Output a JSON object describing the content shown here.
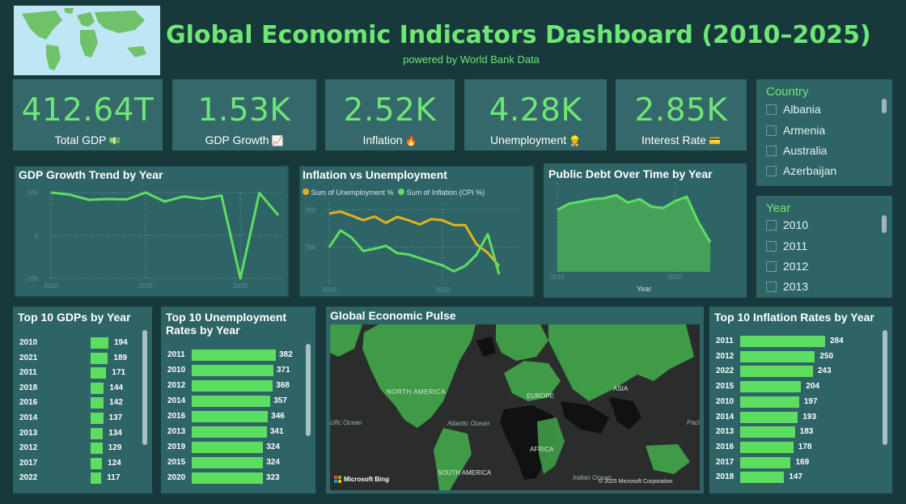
{
  "header": {
    "title": "Global Economic Indicators Dashboard (2010–2025)",
    "subtitle": "powered by World Bank Data"
  },
  "kpis": [
    {
      "value": "412.64T",
      "label": "Total GDP",
      "icon": "💵",
      "icon_name": "money-icon"
    },
    {
      "value": "1.53K",
      "label": "GDP Growth",
      "icon": "📈",
      "icon_name": "chart-up-icon"
    },
    {
      "value": "2.52K",
      "label": "Inflation",
      "icon": "🔥",
      "icon_name": "fire-icon"
    },
    {
      "value": "4.28K",
      "label": "Unemployment",
      "icon": "👷",
      "icon_name": "worker-icon"
    },
    {
      "value": "2.85K",
      "label": "Interest Rate",
      "icon": "💳",
      "icon_name": "card-icon"
    }
  ],
  "slicers": {
    "country": {
      "title": "Country",
      "items": [
        "Albania",
        "Armenia",
        "Australia",
        "Azerbaijan"
      ]
    },
    "year": {
      "title": "Year",
      "items": [
        "2010",
        "2011",
        "2012",
        "2013"
      ]
    }
  },
  "colors": {
    "accent": "#6ee774",
    "bar": "#5ede61",
    "orange": "#e2b21c",
    "panel": "#2e6466",
    "background": "#17393b"
  },
  "chart_data": [
    {
      "type": "line",
      "title": "GDP Growth Trend by Year",
      "x": [
        2010,
        2011,
        2012,
        2013,
        2014,
        2015,
        2016,
        2017,
        2018,
        2019,
        2020,
        2021,
        2022
      ],
      "series": [
        {
          "values": [
            100,
            95,
            83,
            85,
            84,
            100,
            79,
            91,
            85,
            93,
            -100,
            99,
            47
          ]
        }
      ],
      "ylim": [
        -100,
        100
      ],
      "yticks": [
        "100",
        "0",
        "-100"
      ],
      "xticks": [
        "2010",
        "2015",
        "2020"
      ]
    },
    {
      "type": "line",
      "title": "Inflation vs Unemployment",
      "x": [
        2010,
        2011,
        2012,
        2013,
        2014,
        2015,
        2016,
        2017,
        2018,
        2019,
        2020,
        2021,
        2022,
        2023,
        2024,
        2025
      ],
      "series": [
        {
          "name": "Sum of Unemployment %",
          "color": "#e2b21c",
          "values": [
            290,
            295,
            284,
            272,
            282,
            265,
            281,
            272,
            261,
            275,
            272,
            259,
            259,
            208,
            185,
            150
          ]
        },
        {
          "name": "Sum of Inflation (CPI %)",
          "color": "#5ede61",
          "values": [
            200,
            245,
            225,
            190,
            196,
            204,
            184,
            181,
            171,
            161,
            152,
            136,
            150,
            180,
            235,
            128
          ]
        }
      ],
      "ylim": [
        100,
        320
      ],
      "yticks": [
        "300",
        "200"
      ],
      "xticks": [
        "2010",
        "2020"
      ]
    },
    {
      "type": "area",
      "title": "Public Debt Over Time by Year",
      "xlabel": "Year",
      "x": [
        2010,
        2011,
        2012,
        2013,
        2014,
        2015,
        2016,
        2017,
        2018,
        2019,
        2020,
        2021,
        2022,
        2023
      ],
      "series": [
        {
          "values": [
            125,
            138,
            142,
            147,
            149,
            155,
            140,
            147,
            132,
            129,
            143,
            152,
            100,
            60
          ]
        }
      ],
      "ylim": [
        0,
        180
      ],
      "xticks": [
        "2010",
        "2020"
      ]
    },
    {
      "type": "bar",
      "title": "Top 10 GDPs by Year",
      "categories": [
        "2010",
        "2021",
        "2011",
        "2018",
        "2016",
        "2014",
        "2013",
        "2012",
        "2017",
        "2022"
      ],
      "values": [
        194,
        189,
        171,
        144,
        142,
        137,
        134,
        129,
        124,
        117
      ]
    },
    {
      "type": "bar",
      "title": "Top 10 Unemployment Rates by Year",
      "categories": [
        "2011",
        "2010",
        "2012",
        "2014",
        "2016",
        "2013",
        "2019",
        "2015",
        "2020"
      ],
      "values": [
        382,
        371,
        368,
        357,
        346,
        341,
        324,
        324,
        323
      ]
    },
    {
      "type": "bar",
      "title": "Top 10 Inflation Rates by Year",
      "categories": [
        "2011",
        "2012",
        "2022",
        "2015",
        "2010",
        "2014",
        "2013",
        "2016",
        "2017",
        "2018"
      ],
      "values": [
        284,
        250,
        243,
        204,
        197,
        193,
        183,
        178,
        169,
        147
      ]
    }
  ],
  "map": {
    "title": "Global Economic Pulse",
    "labels": [
      "NORTH AMERICA",
      "EUROPE",
      "ASIA",
      "AFRICA",
      "SOUTH AMERICA",
      "Atlantic Ocean",
      "cific Ocean",
      "Pacif",
      "Indian Ocean"
    ],
    "bing_label": "Microsoft Bing",
    "copyright": "© 2025 Microsoft Corporation"
  }
}
